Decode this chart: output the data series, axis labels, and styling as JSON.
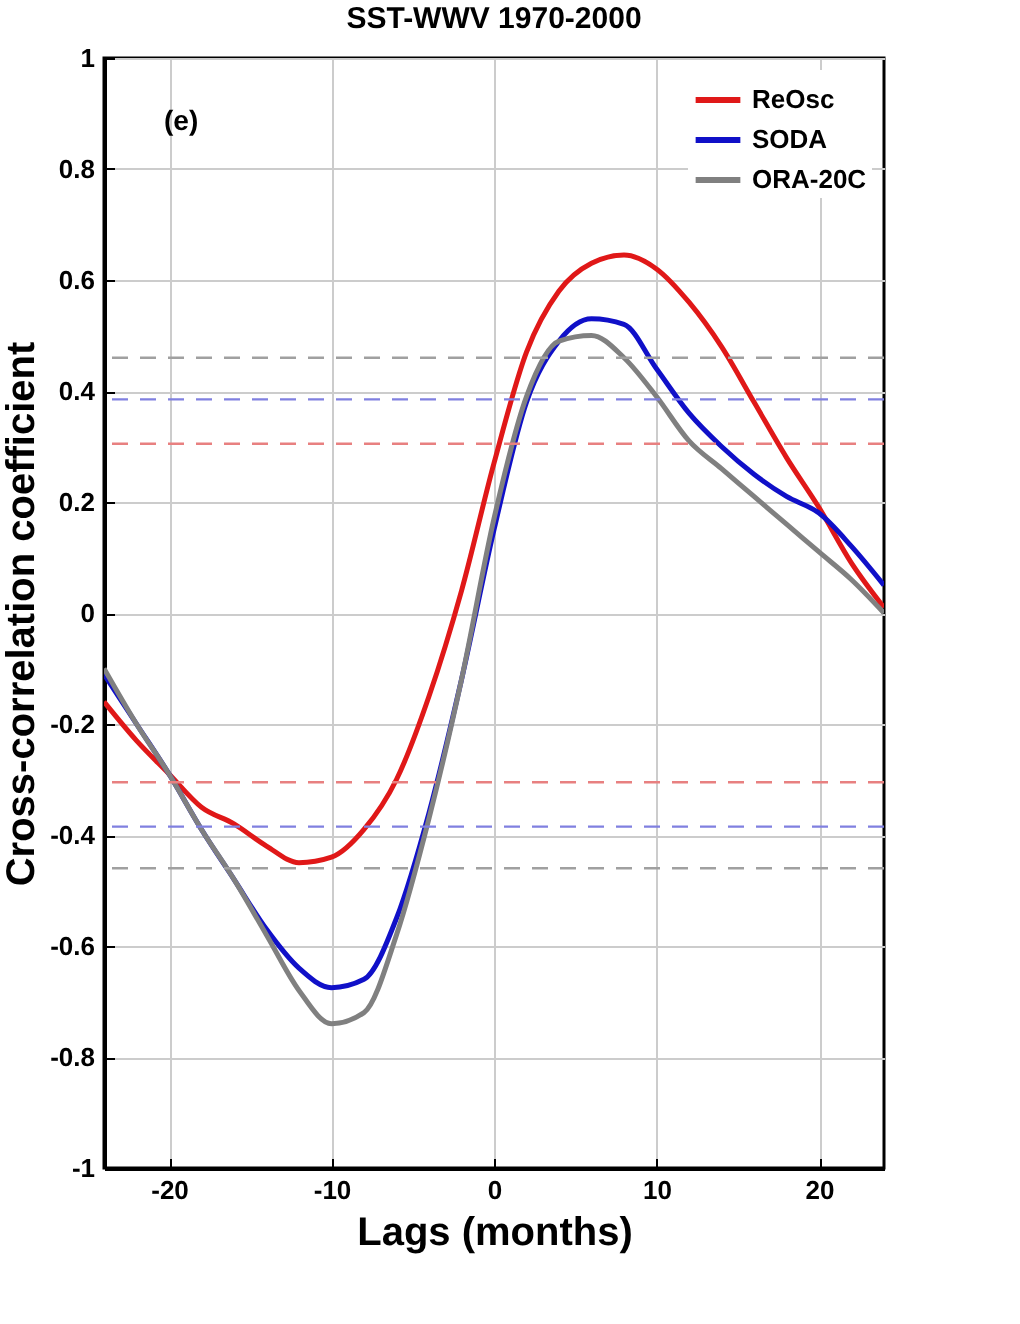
{
  "chart_data": {
    "type": "line",
    "title": "SST-WWV 1970-2000",
    "xlabel": "Lags (months)",
    "ylabel": "Cross-correlation coefficient",
    "annotations": [
      "(e)"
    ],
    "x": [
      -24,
      -22,
      -20,
      -18,
      -16,
      -14,
      -12,
      -10,
      -8,
      -6,
      -4,
      -2,
      0,
      2,
      4,
      6,
      8,
      10,
      12,
      14,
      16,
      18,
      20,
      22,
      24
    ],
    "series": [
      {
        "name": "ReOsc",
        "color": "#e01818",
        "values": [
          -0.16,
          -0.23,
          -0.29,
          -0.35,
          -0.38,
          -0.42,
          -0.45,
          -0.44,
          -0.39,
          -0.3,
          -0.15,
          0.04,
          0.27,
          0.47,
          0.58,
          0.63,
          0.645,
          0.62,
          0.56,
          0.48,
          0.38,
          0.28,
          0.19,
          0.09,
          0.01
        ]
      },
      {
        "name": "SODA",
        "color": "#1010c8",
        "values": [
          -0.11,
          -0.2,
          -0.29,
          -0.39,
          -0.48,
          -0.57,
          -0.64,
          -0.675,
          -0.66,
          -0.55,
          -0.36,
          -0.12,
          0.15,
          0.38,
          0.49,
          0.53,
          0.52,
          0.44,
          0.36,
          0.3,
          0.25,
          0.21,
          0.18,
          0.12,
          0.05
        ]
      },
      {
        "name": "ORA-20C",
        "color": "#808080",
        "values": [
          -0.1,
          -0.2,
          -0.29,
          -0.39,
          -0.48,
          -0.58,
          -0.68,
          -0.74,
          -0.72,
          -0.58,
          -0.37,
          -0.12,
          0.17,
          0.39,
          0.49,
          0.5,
          0.46,
          0.39,
          0.31,
          0.26,
          0.21,
          0.16,
          0.11,
          0.06,
          0.0
        ]
      }
    ],
    "xlim": [
      -24,
      24
    ],
    "xticks": [
      -20,
      -10,
      0,
      10,
      20
    ],
    "ylim": [
      -1,
      1
    ],
    "yticks": [
      -1,
      -0.8,
      -0.6,
      -0.4,
      -0.2,
      0,
      0.2,
      0.4,
      0.6,
      0.8,
      1
    ],
    "ref_lines": [
      {
        "axis": "y",
        "value": 0.46,
        "color": "#a0a0a0",
        "line_style": "dashed"
      },
      {
        "axis": "y",
        "value": 0.385,
        "color": "#8080e0",
        "line_style": "dashed"
      },
      {
        "axis": "y",
        "value": 0.305,
        "color": "#e88080",
        "line_style": "dashed"
      },
      {
        "axis": "y",
        "value": -0.305,
        "color": "#e88080",
        "line_style": "dashed"
      },
      {
        "axis": "y",
        "value": -0.385,
        "color": "#8080e0",
        "line_style": "dashed"
      },
      {
        "axis": "y",
        "value": -0.46,
        "color": "#a0a0a0",
        "line_style": "dashed"
      }
    ],
    "grid": true,
    "legend": "top right",
    "line_style": "solid"
  }
}
